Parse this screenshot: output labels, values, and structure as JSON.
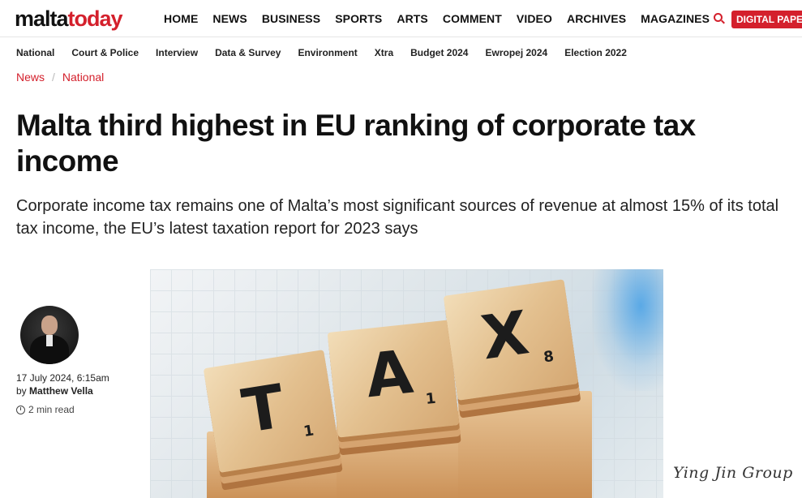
{
  "header": {
    "logo_part1": "malta",
    "logo_part2": "today",
    "nav": [
      "HOME",
      "NEWS",
      "BUSINESS",
      "SPORTS",
      "ARTS",
      "COMMENT",
      "VIDEO",
      "ARCHIVES",
      "MAGAZINES"
    ],
    "search_icon": "search-icon",
    "digital_paper": "DIGITAL PAPER"
  },
  "subnav": [
    "National",
    "Court & Police",
    "Interview",
    "Data & Survey",
    "Environment",
    "Xtra",
    "Budget 2024",
    "Ewropej 2024",
    "Election 2022"
  ],
  "breadcrumb": {
    "items": [
      "News",
      "National"
    ],
    "separator": "/"
  },
  "article": {
    "headline": "Malta third highest in EU ranking of corporate tax income",
    "subheadline": "Corporate income tax remains one of Malta’s most significant sources of revenue at almost 15% of its total tax income, the EU’s latest taxation report for 2023 says",
    "date": "17 July 2024, 6:15am",
    "by": "by",
    "author": "Matthew Vella",
    "read_time": "2 min read",
    "clock_icon": "clock-icon",
    "hero_tiles": [
      {
        "letter": "T",
        "value": "1"
      },
      {
        "letter": "A",
        "value": "1"
      },
      {
        "letter": "X",
        "value": "8"
      }
    ]
  },
  "watermark": "Ying Jin Group",
  "colors": {
    "brand_red": "#d4202c",
    "text": "#111111"
  }
}
